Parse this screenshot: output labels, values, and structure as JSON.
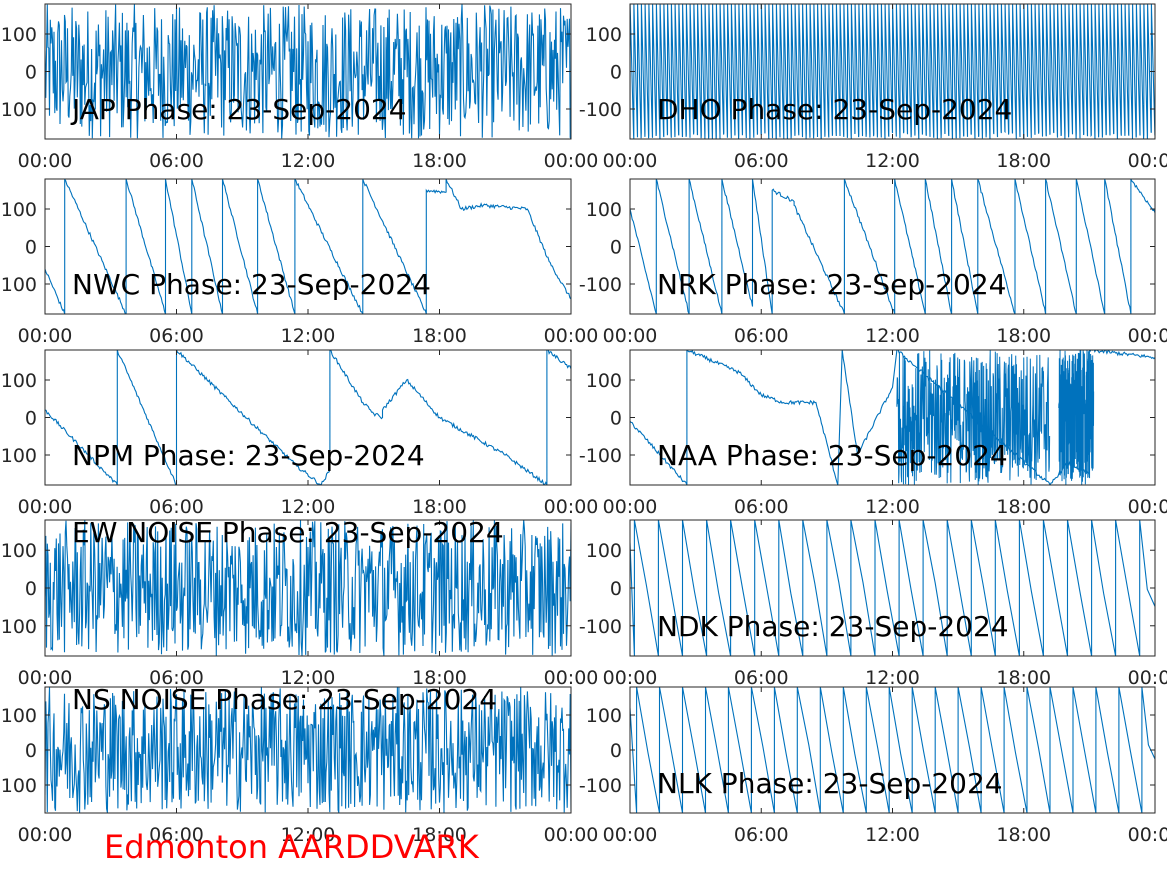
{
  "figure": {
    "footer_text": "Edmonton AARDDVARK",
    "footer_color": "#ff0000",
    "line_color": "#0072bd",
    "axis_color": "#262626"
  },
  "chart_data": [
    {
      "type": "line",
      "title": "JAP Phase: 23-Sep-2024",
      "label_pos": "bottom-left",
      "xlim": [
        "00:00",
        "24:00"
      ],
      "ylim": [
        -180,
        180
      ],
      "xticks": [
        "00:00",
        "06:00",
        "12:00",
        "18:00",
        "00:00"
      ],
      "yticks": [
        100,
        0,
        -100
      ],
      "series": [
        {
          "pattern": "noise",
          "x": [
            0,
            3.0,
            6.0,
            7.5,
            12,
            18,
            24
          ],
          "y_density": [
            0.8,
            0.9,
            1.0,
            1.0,
            0.9,
            0.9,
            0.85
          ]
        }
      ]
    },
    {
      "type": "line",
      "title": "DHO Phase: 23-Sep-2024",
      "label_pos": "bottom-left",
      "xlim": [
        "00:00",
        "24:00"
      ],
      "ylim": [
        -180,
        180
      ],
      "xticks": [
        "00:00",
        "06:00",
        "12:00",
        "18:00",
        "00:00"
      ],
      "yticks": [
        100,
        0,
        -100
      ],
      "series": [
        {
          "pattern": "rapid-wrap",
          "x": [
            0,
            6,
            7,
            12,
            18,
            24
          ],
          "y_density": [
            0.7,
            0.75,
            0.85,
            0.7,
            0.75,
            0.7
          ]
        }
      ]
    },
    {
      "type": "line",
      "title": "NWC Phase: 23-Sep-2024",
      "label_pos": "bottom-left",
      "xlim": [
        "00:00",
        "24:00"
      ],
      "ylim": [
        -180,
        180
      ],
      "xticks": [
        "00:00",
        "06:00",
        "12:00",
        "18:00",
        "00:00"
      ],
      "yticks": [
        100,
        0,
        -100
      ],
      "series": [
        {
          "pattern": "sawtooth",
          "x": [
            0,
            0.9,
            0.9,
            3.7,
            3.7,
            5.5,
            5.5,
            6.7,
            6.7,
            8.1,
            8.1,
            9.7,
            9.7,
            11.4,
            11.4,
            14.5,
            14.5,
            17.4,
            17.4,
            18.3,
            18.3,
            19.0,
            20.0,
            21.0,
            22.0,
            23.0,
            24.0
          ],
          "y": [
            -60,
            -180,
            180,
            -180,
            180,
            -180,
            180,
            -180,
            180,
            -180,
            180,
            -180,
            180,
            -180,
            180,
            -180,
            180,
            -180,
            150,
            145,
            180,
            100,
            110,
            105,
            100,
            -40,
            -140
          ]
        }
      ]
    },
    {
      "type": "line",
      "title": "NRK Phase: 23-Sep-2024",
      "label_pos": "bottom-left",
      "xlim": [
        "00:00",
        "24:00"
      ],
      "ylim": [
        -180,
        180
      ],
      "xticks": [
        "00:00",
        "06:00",
        "12:00",
        "18:00",
        "00:00"
      ],
      "yticks": [
        100,
        0,
        -100
      ],
      "series": [
        {
          "pattern": "sawtooth",
          "x": [
            0,
            1.2,
            1.2,
            2.7,
            2.7,
            4.2,
            4.2,
            5.6,
            5.6,
            6.5,
            6.5,
            7.5,
            7.5,
            9.8,
            9.8,
            12.1,
            12.1,
            13.5,
            13.5,
            14.7,
            14.7,
            15.9,
            15.9,
            17.6,
            17.6,
            19.0,
            19.0,
            20.4,
            20.4,
            21.7,
            21.7,
            22.9,
            22.9,
            24.0
          ],
          "y": [
            100,
            -180,
            180,
            -180,
            180,
            -180,
            180,
            -160,
            180,
            -180,
            150,
            120,
            110,
            -180,
            180,
            -180,
            180,
            -180,
            180,
            -180,
            180,
            -180,
            180,
            -180,
            180,
            -180,
            180,
            -180,
            180,
            -180,
            180,
            -180,
            180,
            90
          ]
        }
      ]
    },
    {
      "type": "line",
      "title": "NPM Phase: 23-Sep-2024",
      "label_pos": "bottom-left",
      "xlim": [
        "00:00",
        "24:00"
      ],
      "ylim": [
        -180,
        180
      ],
      "xticks": [
        "00:00",
        "06:00",
        "12:00",
        "18:00",
        "00:00"
      ],
      "yticks": [
        100,
        0,
        -100
      ],
      "series": [
        {
          "pattern": "sawtooth",
          "x": [
            0,
            3.3,
            3.3,
            6.0,
            6.0,
            9.0,
            11.5,
            12.6,
            13.0,
            13.0,
            14.5,
            15.0,
            15.4,
            15.4,
            16.5,
            18.0,
            21.0,
            22.9,
            22.9,
            24.0
          ],
          "y": [
            20,
            -180,
            180,
            -180,
            180,
            10,
            -130,
            -180,
            -140,
            180,
            40,
            10,
            0,
            20,
            100,
            0,
            -100,
            -180,
            180,
            130
          ]
        }
      ]
    },
    {
      "type": "line",
      "title": "NAA Phase: 23-Sep-2024",
      "label_pos": "bottom-left",
      "xlim": [
        "00:00",
        "24:00"
      ],
      "ylim": [
        -180,
        180
      ],
      "xticks": [
        "00:00",
        "06:00",
        "12:00",
        "18:00",
        "00:00"
      ],
      "yticks": [
        100,
        0,
        -100
      ],
      "series": [
        {
          "pattern": "mixed",
          "x": [
            0,
            2.6,
            2.6,
            5.0,
            6.0,
            7.0,
            8.5,
            9.5,
            9.7,
            10.4,
            12.0,
            12.2,
            19.2,
            20.0,
            21.0,
            21.0,
            24.0
          ],
          "y": [
            -10,
            -180,
            180,
            120,
            60,
            40,
            40,
            -180,
            180,
            -100,
            80,
            180,
            -180,
            -120,
            -150,
            180,
            160
          ]
        }
      ]
    },
    {
      "type": "line",
      "title": "EW NOISE Phase: 23-Sep-2024",
      "label_pos": "top-left",
      "xlim": [
        "00:00",
        "24:00"
      ],
      "ylim": [
        -180,
        180
      ],
      "xticks": [
        "00:00",
        "06:00",
        "12:00",
        "18:00",
        "00:00"
      ],
      "yticks": [
        100,
        0,
        -100
      ],
      "series": [
        {
          "pattern": "noise",
          "x": [
            0,
            6,
            12,
            18,
            24
          ],
          "y_density": [
            0.75,
            0.8,
            0.8,
            0.8,
            0.8
          ]
        }
      ]
    },
    {
      "type": "line",
      "title": "NDK Phase: 23-Sep-2024",
      "label_pos": "bottom-left",
      "xlim": [
        "00:00",
        "24:00"
      ],
      "ylim": [
        -180,
        180
      ],
      "xticks": [
        "00:00",
        "06:00",
        "12:00",
        "18:00",
        "00:00"
      ],
      "yticks": [
        100,
        0,
        -100
      ],
      "series": [
        {
          "pattern": "sawtooth-regular",
          "period_hours": 1.1,
          "start": 0.2
        }
      ]
    },
    {
      "type": "line",
      "title": "NS NOISE Phase: 23-Sep-2024",
      "label_pos": "top-left",
      "xlim": [
        "00:00",
        "24:00"
      ],
      "ylim": [
        -180,
        180
      ],
      "xticks": [
        "00:00",
        "06:00",
        "12:00",
        "18:00",
        "00:00"
      ],
      "yticks": [
        100,
        0,
        -100
      ],
      "series": [
        {
          "pattern": "noise",
          "x": [
            0,
            6,
            12,
            18,
            24
          ],
          "y_density": [
            0.75,
            0.8,
            0.8,
            0.8,
            0.8
          ]
        }
      ]
    },
    {
      "type": "line",
      "title": "NLK Phase: 23-Sep-2024",
      "label_pos": "bottom-left",
      "xlim": [
        "00:00",
        "24:00"
      ],
      "ylim": [
        -180,
        180
      ],
      "xticks": [
        "00:00",
        "06:00",
        "12:00",
        "18:00",
        "00:00"
      ],
      "yticks": [
        100,
        0,
        -100
      ],
      "series": [
        {
          "pattern": "sawtooth-regular",
          "period_hours": 1.05,
          "start": 0.3
        }
      ]
    }
  ]
}
